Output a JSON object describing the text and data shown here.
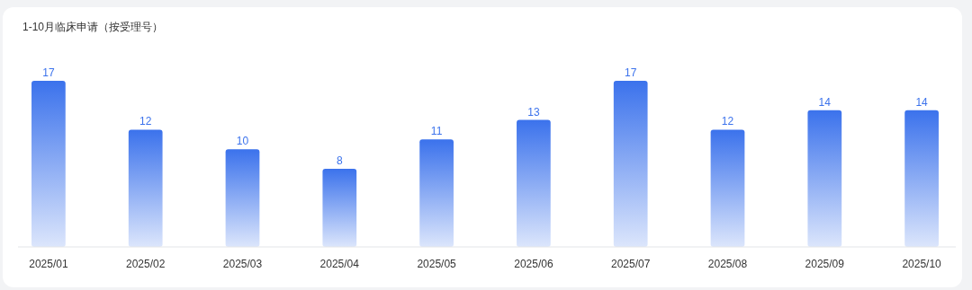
{
  "chart_data": {
    "type": "bar",
    "title": "1-10月临床申请（按受理号）",
    "categories": [
      "2025/01",
      "2025/02",
      "2025/03",
      "2025/04",
      "2025/05",
      "2025/06",
      "2025/07",
      "2025/08",
      "2025/09",
      "2025/10"
    ],
    "values": [
      17,
      12,
      10,
      8,
      11,
      13,
      17,
      12,
      14,
      14
    ],
    "color": "#3b72ec",
    "data_labels": true
  }
}
